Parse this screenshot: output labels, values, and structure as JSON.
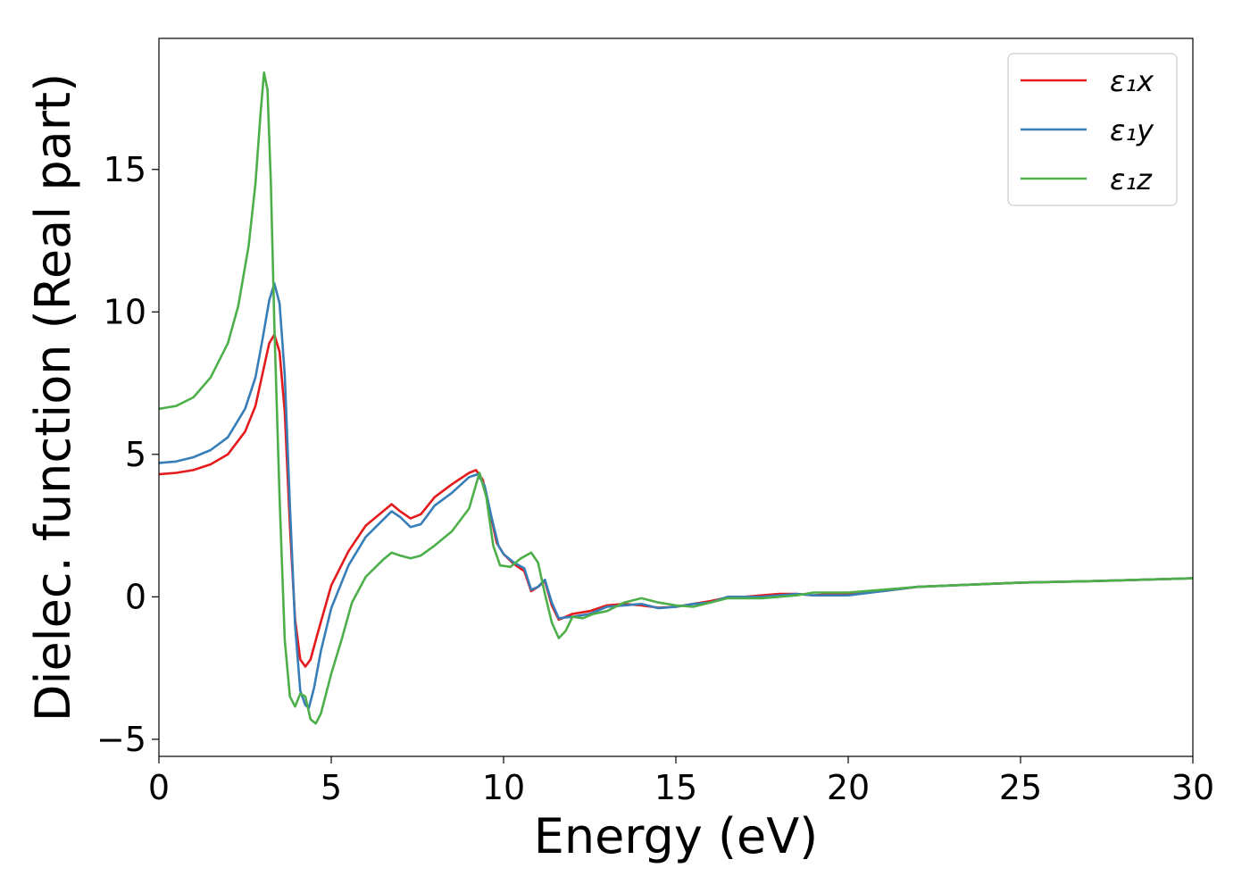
{
  "chart_data": {
    "type": "line",
    "title": "",
    "xlabel": "Energy (eV)",
    "ylabel": "Dielec. function (Real part)",
    "xlim": [
      0,
      30
    ],
    "ylim": [
      -5.6,
      19.6
    ],
    "xticks": [
      0,
      5,
      10,
      15,
      20,
      25,
      30
    ],
    "yticks": [
      -5,
      0,
      5,
      10,
      15
    ],
    "ytick_labels": [
      "−5",
      "0",
      "5",
      "10",
      "15"
    ],
    "grid": false,
    "legend_position": "top-right",
    "series": [
      {
        "name": "ε₁x",
        "color": "#e41a1c",
        "points": [
          [
            0,
            4.3
          ],
          [
            0.5,
            4.35
          ],
          [
            1.0,
            4.45
          ],
          [
            1.5,
            4.65
          ],
          [
            2.0,
            5.0
          ],
          [
            2.5,
            5.8
          ],
          [
            2.8,
            6.7
          ],
          [
            3.0,
            7.8
          ],
          [
            3.2,
            8.9
          ],
          [
            3.35,
            9.2
          ],
          [
            3.5,
            8.6
          ],
          [
            3.65,
            6.5
          ],
          [
            3.8,
            2.5
          ],
          [
            3.95,
            -0.8
          ],
          [
            4.1,
            -2.2
          ],
          [
            4.25,
            -2.45
          ],
          [
            4.4,
            -2.2
          ],
          [
            4.6,
            -1.3
          ],
          [
            5.0,
            0.4
          ],
          [
            5.5,
            1.6
          ],
          [
            6.0,
            2.5
          ],
          [
            6.5,
            3.0
          ],
          [
            6.75,
            3.25
          ],
          [
            7.0,
            3.0
          ],
          [
            7.3,
            2.75
          ],
          [
            7.6,
            2.9
          ],
          [
            8.0,
            3.5
          ],
          [
            8.5,
            3.95
          ],
          [
            9.0,
            4.35
          ],
          [
            9.2,
            4.45
          ],
          [
            9.4,
            4.1
          ],
          [
            9.6,
            3.0
          ],
          [
            9.8,
            1.9
          ],
          [
            10.0,
            1.5
          ],
          [
            10.3,
            1.15
          ],
          [
            10.6,
            0.9
          ],
          [
            10.8,
            0.2
          ],
          [
            11.0,
            0.35
          ],
          [
            11.2,
            0.55
          ],
          [
            11.4,
            -0.3
          ],
          [
            11.6,
            -0.8
          ],
          [
            12.0,
            -0.6
          ],
          [
            12.5,
            -0.5
          ],
          [
            13.0,
            -0.3
          ],
          [
            13.5,
            -0.25
          ],
          [
            14.0,
            -0.3
          ],
          [
            14.5,
            -0.38
          ],
          [
            15.0,
            -0.35
          ],
          [
            15.5,
            -0.25
          ],
          [
            16.0,
            -0.15
          ],
          [
            16.5,
            -0.02
          ],
          [
            17.0,
            0.0
          ],
          [
            17.5,
            0.05
          ],
          [
            18.0,
            0.1
          ],
          [
            18.5,
            0.1
          ],
          [
            19.0,
            0.05
          ],
          [
            19.5,
            0.1
          ],
          [
            20.0,
            0.1
          ],
          [
            21.0,
            0.2
          ],
          [
            22.0,
            0.35
          ],
          [
            23.0,
            0.4
          ],
          [
            25.0,
            0.5
          ],
          [
            27.0,
            0.55
          ],
          [
            30.0,
            0.65
          ]
        ]
      },
      {
        "name": "ε₁y",
        "color": "#377eb8",
        "points": [
          [
            0,
            4.7
          ],
          [
            0.5,
            4.75
          ],
          [
            1.0,
            4.9
          ],
          [
            1.5,
            5.15
          ],
          [
            2.0,
            5.6
          ],
          [
            2.5,
            6.6
          ],
          [
            2.8,
            7.7
          ],
          [
            3.0,
            9.0
          ],
          [
            3.2,
            10.4
          ],
          [
            3.35,
            11.0
          ],
          [
            3.5,
            10.3
          ],
          [
            3.65,
            7.8
          ],
          [
            3.8,
            3.2
          ],
          [
            3.95,
            -1.0
          ],
          [
            4.1,
            -3.3
          ],
          [
            4.25,
            -3.8
          ],
          [
            4.35,
            -3.9
          ],
          [
            4.5,
            -3.2
          ],
          [
            4.7,
            -1.9
          ],
          [
            5.0,
            -0.4
          ],
          [
            5.5,
            1.1
          ],
          [
            6.0,
            2.1
          ],
          [
            6.5,
            2.7
          ],
          [
            6.75,
            3.0
          ],
          [
            7.0,
            2.8
          ],
          [
            7.3,
            2.45
          ],
          [
            7.6,
            2.55
          ],
          [
            8.0,
            3.2
          ],
          [
            8.5,
            3.65
          ],
          [
            9.0,
            4.2
          ],
          [
            9.25,
            4.3
          ],
          [
            9.45,
            3.9
          ],
          [
            9.65,
            2.8
          ],
          [
            9.85,
            1.8
          ],
          [
            10.0,
            1.5
          ],
          [
            10.3,
            1.2
          ],
          [
            10.6,
            1.0
          ],
          [
            10.8,
            0.25
          ],
          [
            11.0,
            0.35
          ],
          [
            11.2,
            0.6
          ],
          [
            11.4,
            -0.2
          ],
          [
            11.6,
            -0.75
          ],
          [
            12.0,
            -0.7
          ],
          [
            12.5,
            -0.6
          ],
          [
            13.0,
            -0.35
          ],
          [
            13.5,
            -0.3
          ],
          [
            14.0,
            -0.25
          ],
          [
            14.5,
            -0.4
          ],
          [
            15.0,
            -0.35
          ],
          [
            15.5,
            -0.25
          ],
          [
            16.0,
            -0.2
          ],
          [
            16.5,
            0.0
          ],
          [
            17.0,
            0.0
          ],
          [
            17.5,
            0.0
          ],
          [
            18.0,
            0.05
          ],
          [
            18.5,
            0.1
          ],
          [
            19.0,
            0.05
          ],
          [
            19.5,
            0.05
          ],
          [
            20.0,
            0.05
          ],
          [
            21.0,
            0.2
          ],
          [
            22.0,
            0.35
          ],
          [
            23.0,
            0.4
          ],
          [
            25.0,
            0.5
          ],
          [
            27.0,
            0.55
          ],
          [
            30.0,
            0.65
          ]
        ]
      },
      {
        "name": "ε₁z",
        "color": "#4daf4a",
        "points": [
          [
            0,
            6.6
          ],
          [
            0.5,
            6.7
          ],
          [
            1.0,
            7.0
          ],
          [
            1.5,
            7.7
          ],
          [
            2.0,
            8.9
          ],
          [
            2.3,
            10.2
          ],
          [
            2.6,
            12.3
          ],
          [
            2.8,
            14.5
          ],
          [
            2.95,
            17.0
          ],
          [
            3.05,
            18.4
          ],
          [
            3.15,
            17.8
          ],
          [
            3.25,
            14.5
          ],
          [
            3.35,
            9.5
          ],
          [
            3.5,
            3.5
          ],
          [
            3.65,
            -1.5
          ],
          [
            3.8,
            -3.5
          ],
          [
            3.95,
            -3.85
          ],
          [
            4.1,
            -3.4
          ],
          [
            4.25,
            -3.5
          ],
          [
            4.4,
            -4.3
          ],
          [
            4.55,
            -4.45
          ],
          [
            4.7,
            -4.1
          ],
          [
            5.0,
            -2.7
          ],
          [
            5.3,
            -1.5
          ],
          [
            5.6,
            -0.2
          ],
          [
            6.0,
            0.7
          ],
          [
            6.5,
            1.3
          ],
          [
            6.75,
            1.55
          ],
          [
            7.0,
            1.45
          ],
          [
            7.3,
            1.35
          ],
          [
            7.6,
            1.45
          ],
          [
            8.0,
            1.8
          ],
          [
            8.5,
            2.3
          ],
          [
            9.0,
            3.1
          ],
          [
            9.3,
            4.35
          ],
          [
            9.5,
            3.5
          ],
          [
            9.7,
            1.8
          ],
          [
            9.9,
            1.1
          ],
          [
            10.2,
            1.05
          ],
          [
            10.5,
            1.35
          ],
          [
            10.8,
            1.55
          ],
          [
            11.0,
            1.2
          ],
          [
            11.2,
            0.1
          ],
          [
            11.4,
            -0.9
          ],
          [
            11.6,
            -1.45
          ],
          [
            11.8,
            -1.2
          ],
          [
            12.0,
            -0.7
          ],
          [
            12.3,
            -0.75
          ],
          [
            12.6,
            -0.6
          ],
          [
            13.0,
            -0.5
          ],
          [
            13.5,
            -0.2
          ],
          [
            14.0,
            -0.05
          ],
          [
            14.5,
            -0.2
          ],
          [
            15.0,
            -0.3
          ],
          [
            15.5,
            -0.35
          ],
          [
            16.0,
            -0.2
          ],
          [
            16.5,
            -0.05
          ],
          [
            17.0,
            -0.05
          ],
          [
            17.5,
            -0.05
          ],
          [
            18.0,
            0.0
          ],
          [
            18.5,
            0.05
          ],
          [
            19.0,
            0.15
          ],
          [
            19.5,
            0.15
          ],
          [
            20.0,
            0.15
          ],
          [
            21.0,
            0.25
          ],
          [
            22.0,
            0.35
          ],
          [
            23.0,
            0.4
          ],
          [
            25.0,
            0.5
          ],
          [
            27.0,
            0.55
          ],
          [
            30.0,
            0.65
          ]
        ]
      }
    ]
  }
}
